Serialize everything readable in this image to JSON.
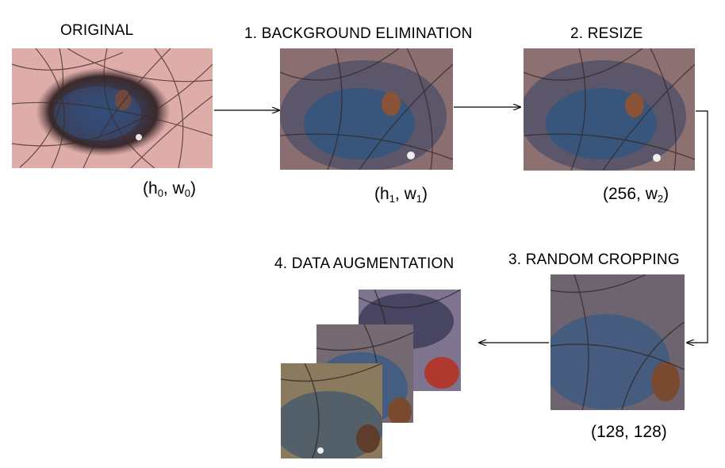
{
  "stages": [
    {
      "label": "ORIGINAL",
      "dims": {
        "a": "h",
        "a_sub": "0",
        "b": "w",
        "b_sub": "0"
      }
    },
    {
      "label": "1. BACKGROUND ELIMINATION",
      "dims": {
        "a": "h",
        "a_sub": "1",
        "b": "w",
        "b_sub": "1"
      }
    },
    {
      "label": "2. RESIZE",
      "dims": {
        "a": "256",
        "a_sub": "",
        "b": "w",
        "b_sub": "2"
      }
    },
    {
      "label": "3. RANDOM CROPPING",
      "dims": {
        "a": "128",
        "a_sub": "",
        "b": "128",
        "b_sub": ""
      }
    },
    {
      "label": "4. DATA AUGMENTATION"
    }
  ]
}
